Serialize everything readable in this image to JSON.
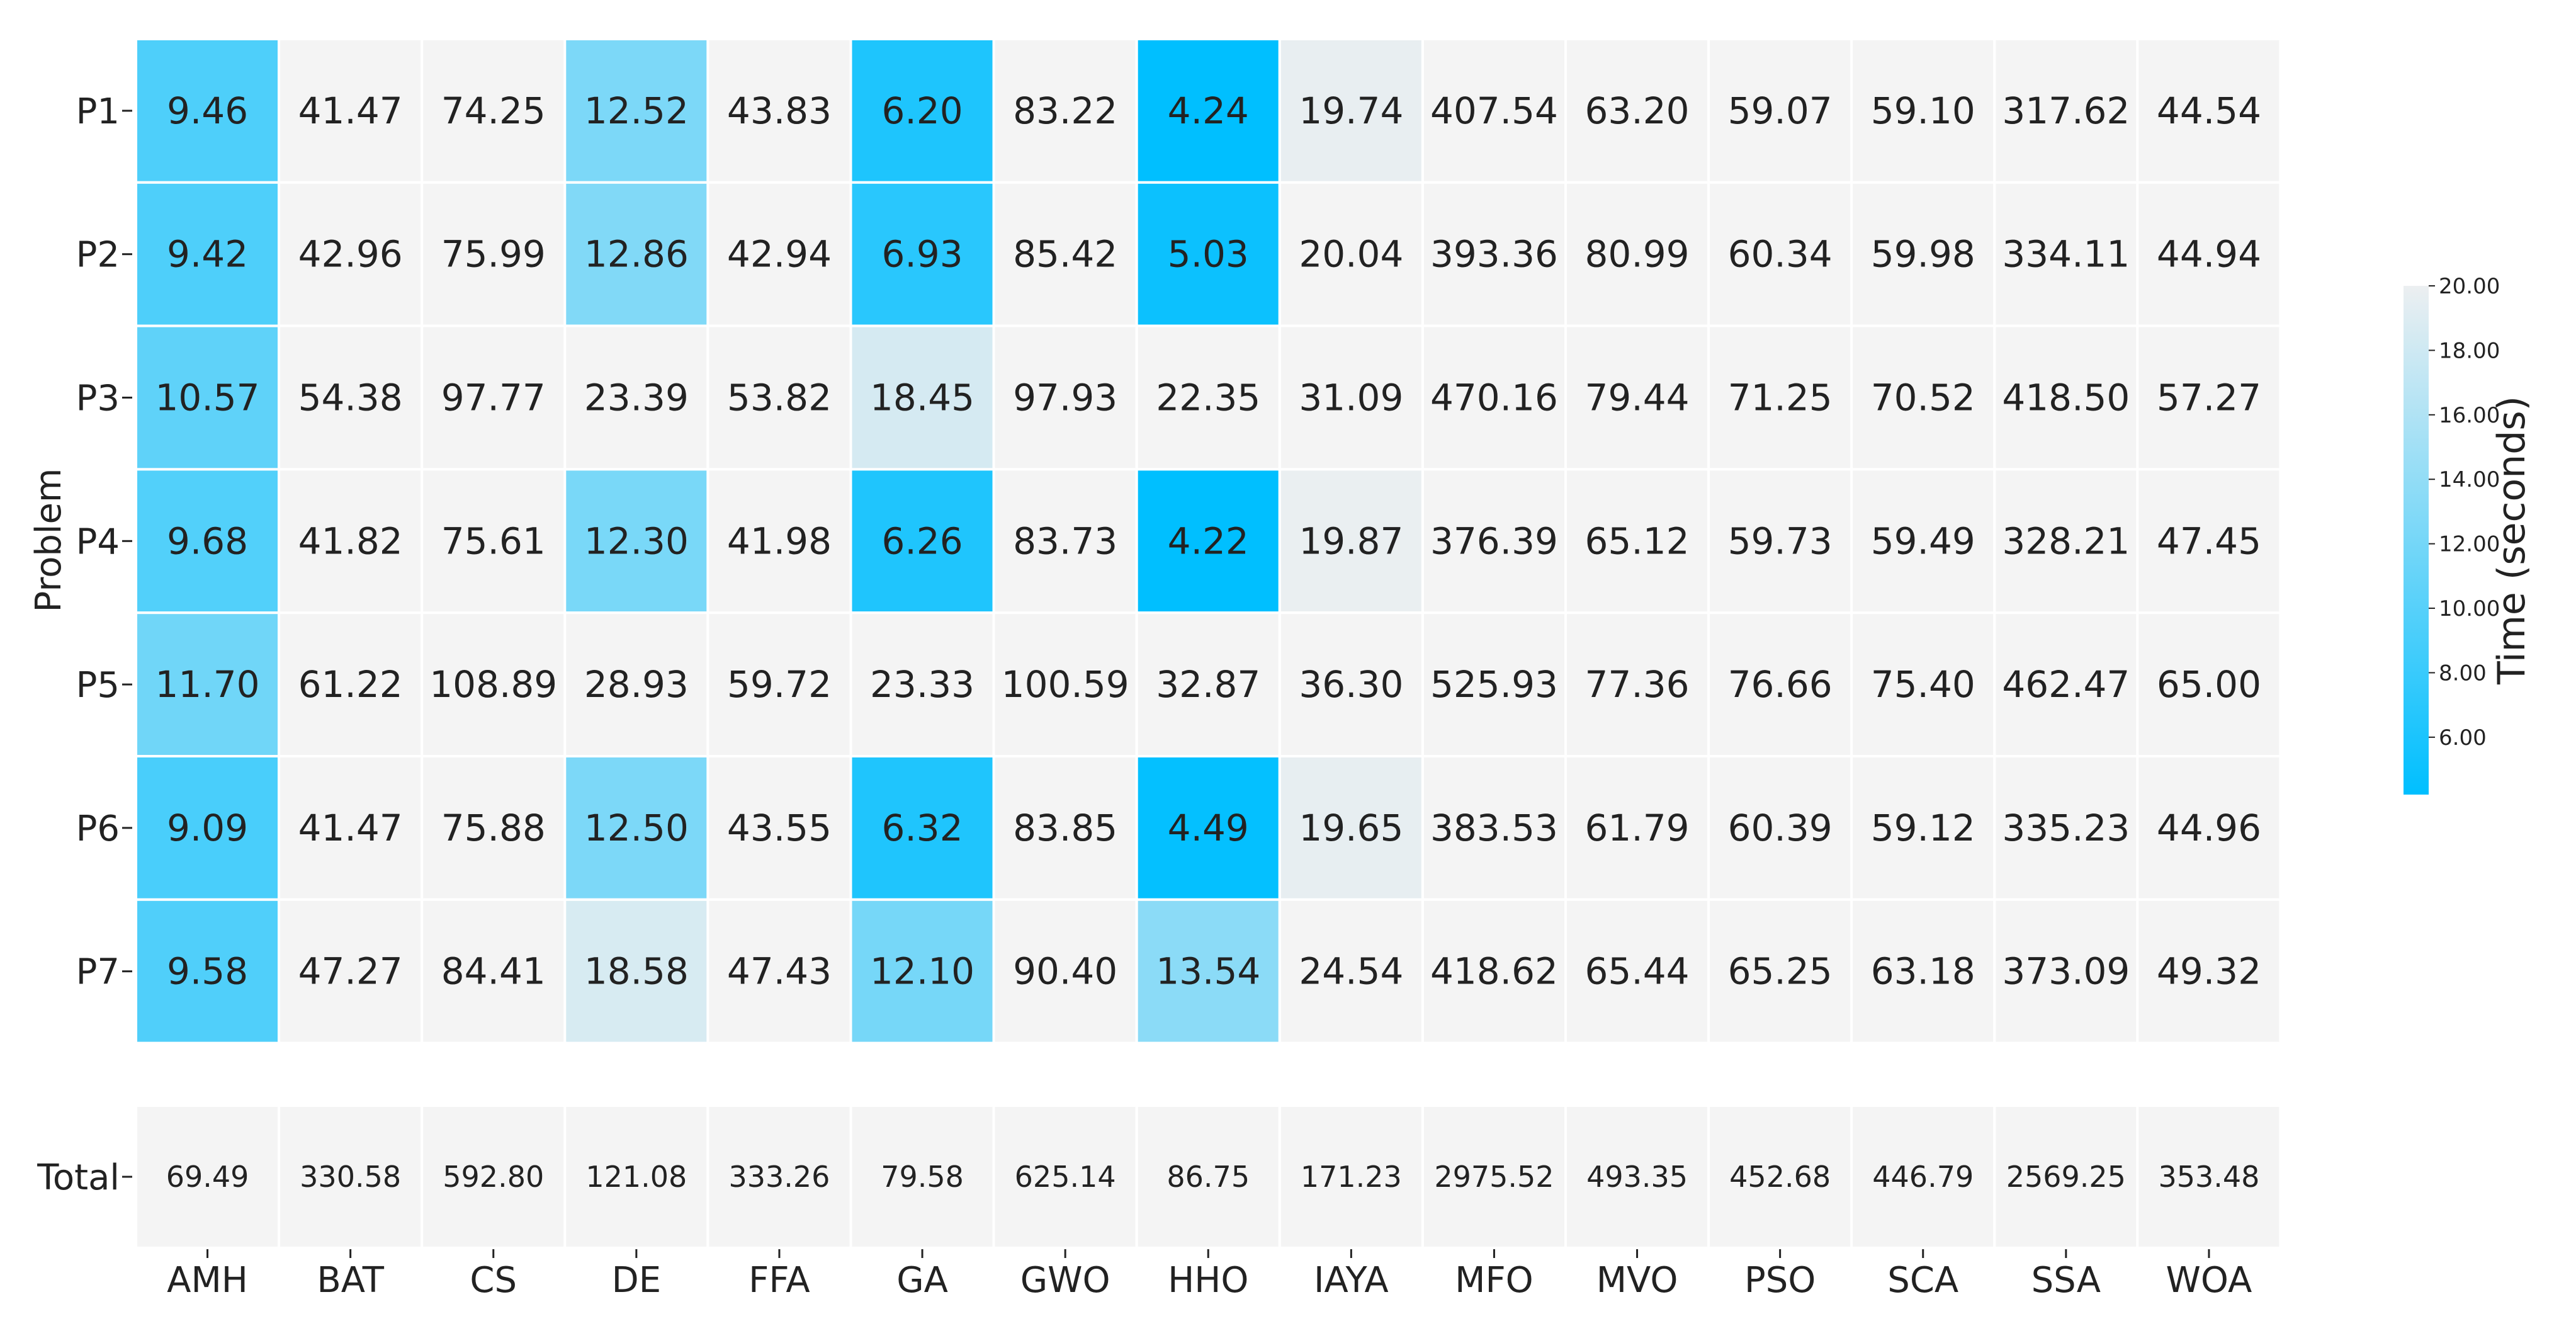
{
  "chart_data": {
    "type": "heatmap",
    "title": "",
    "xlabel": "",
    "ylabel": "Problem",
    "columns": [
      "AMH",
      "BAT",
      "CS",
      "DE",
      "FFA",
      "GA",
      "GWO",
      "HHO",
      "IAYA",
      "MFO",
      "MVO",
      "PSO",
      "SCA",
      "SSA",
      "WOA"
    ],
    "rows": [
      "P1",
      "P2",
      "P3",
      "P4",
      "P5",
      "P6",
      "P7"
    ],
    "values": [
      [
        9.46,
        41.47,
        74.25,
        12.52,
        43.83,
        6.2,
        83.22,
        4.24,
        19.74,
        407.54,
        63.2,
        59.07,
        59.1,
        317.62,
        44.54
      ],
      [
        9.42,
        42.96,
        75.99,
        12.86,
        42.94,
        6.93,
        85.42,
        5.03,
        20.04,
        393.36,
        80.99,
        60.34,
        59.98,
        334.11,
        44.94
      ],
      [
        10.57,
        54.38,
        97.77,
        23.39,
        53.82,
        18.45,
        97.93,
        22.35,
        31.09,
        470.16,
        79.44,
        71.25,
        70.52,
        418.5,
        57.27
      ],
      [
        9.68,
        41.82,
        75.61,
        12.3,
        41.98,
        6.26,
        83.73,
        4.22,
        19.87,
        376.39,
        65.12,
        59.73,
        59.49,
        328.21,
        47.45
      ],
      [
        11.7,
        61.22,
        108.89,
        28.93,
        59.72,
        23.33,
        100.59,
        32.87,
        36.3,
        525.93,
        77.36,
        76.66,
        75.4,
        462.47,
        65.0
      ],
      [
        9.09,
        41.47,
        75.88,
        12.5,
        43.55,
        6.32,
        83.85,
        4.49,
        19.65,
        383.53,
        61.79,
        60.39,
        59.12,
        335.23,
        44.96
      ],
      [
        9.58,
        47.27,
        84.41,
        18.58,
        47.43,
        12.1,
        90.4,
        13.54,
        24.54,
        418.62,
        65.44,
        65.25,
        63.18,
        373.09,
        49.32
      ]
    ],
    "total_row_label": "Total",
    "totals": [
      69.49,
      330.58,
      592.8,
      121.08,
      333.26,
      79.58,
      625.14,
      86.75,
      171.23,
      2975.52,
      493.35,
      452.68,
      446.79,
      2569.25,
      353.48
    ],
    "colorbar": {
      "label": "Time (seconds)",
      "vmin": 4.22,
      "vmax": 20.0,
      "ticks": [
        "6.00",
        "8.00",
        "10.00",
        "12.00",
        "14.00",
        "16.00",
        "18.00",
        "20.00"
      ],
      "color_low": "#00bfff",
      "color_high": "#eceff1",
      "over_color": "#f4f4f4"
    },
    "totals_cell_color": "#f4f4f4",
    "grid_line_color": "#ffffff"
  }
}
